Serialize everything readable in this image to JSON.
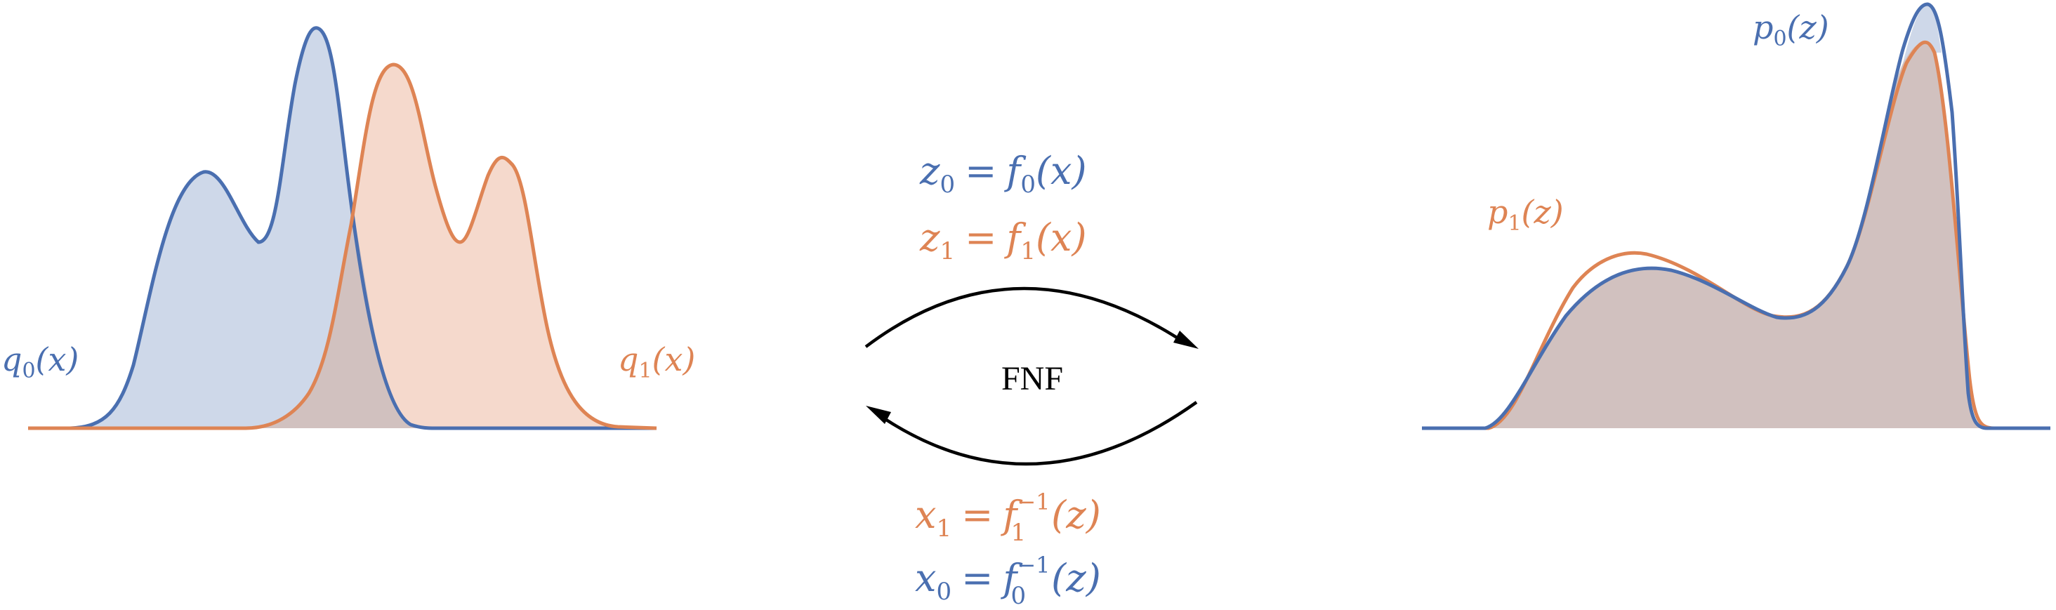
{
  "colors": {
    "blue": "#4a6fb0",
    "blue_fill": "#ced8e9",
    "orange": "#de8454",
    "orange_fill": "#f5d9cc",
    "overlap_fill": "#d1c1bf",
    "arrow": "#000000"
  },
  "left_panel": {
    "label_q0": {
      "base": "q",
      "sub": "0",
      "arg": "(x)"
    },
    "label_q1": {
      "base": "q",
      "sub": "1",
      "arg": "(x)"
    }
  },
  "center": {
    "forward_eq_0": {
      "lhs": "z",
      "lhs_sub": "0",
      "rhs": "f",
      "rhs_sub": "0",
      "arg": "(x)"
    },
    "forward_eq_1": {
      "lhs": "z",
      "lhs_sub": "1",
      "rhs": "f",
      "rhs_sub": "1",
      "arg": "(x)"
    },
    "flow_label": "FNF",
    "inverse_eq_1": {
      "lhs": "x",
      "lhs_sub": "1",
      "rhs": "f",
      "rhs_sub": "1",
      "rhs_sup": "−1",
      "arg": "(z)"
    },
    "inverse_eq_0": {
      "lhs": "x",
      "lhs_sub": "0",
      "rhs": "f",
      "rhs_sub": "0",
      "rhs_sup": "−1",
      "arg": "(z)"
    }
  },
  "right_panel": {
    "label_p0": {
      "base": "p",
      "sub": "0",
      "arg": "(z)"
    },
    "label_p1": {
      "base": "p",
      "sub": "1",
      "arg": "(z)"
    }
  }
}
